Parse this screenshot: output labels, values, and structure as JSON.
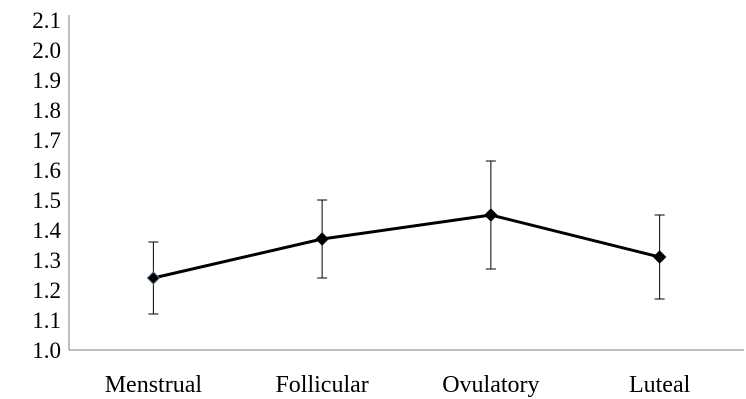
{
  "chart_data": {
    "type": "line",
    "categories": [
      "Menstrual",
      "Follicular",
      "Ovulatory",
      "Luteal"
    ],
    "series": [
      {
        "values": [
          1.24,
          1.37,
          1.45,
          1.31
        ],
        "error_upper": [
          1.36,
          1.5,
          1.63,
          1.45
        ],
        "error_lower": [
          1.12,
          1.24,
          1.27,
          1.17
        ]
      }
    ],
    "y_ticks": [
      "1.0",
      "1.1",
      "1.2",
      "1.3",
      "1.4",
      "1.5",
      "1.6",
      "1.7",
      "1.8",
      "1.9",
      "2.0",
      "2.1"
    ],
    "ylim": [
      1.0,
      2.1
    ],
    "grid": false,
    "legend": "none",
    "line_color": "#000000",
    "marker": "diamond",
    "title": "",
    "xlabel": "",
    "ylabel": ""
  }
}
